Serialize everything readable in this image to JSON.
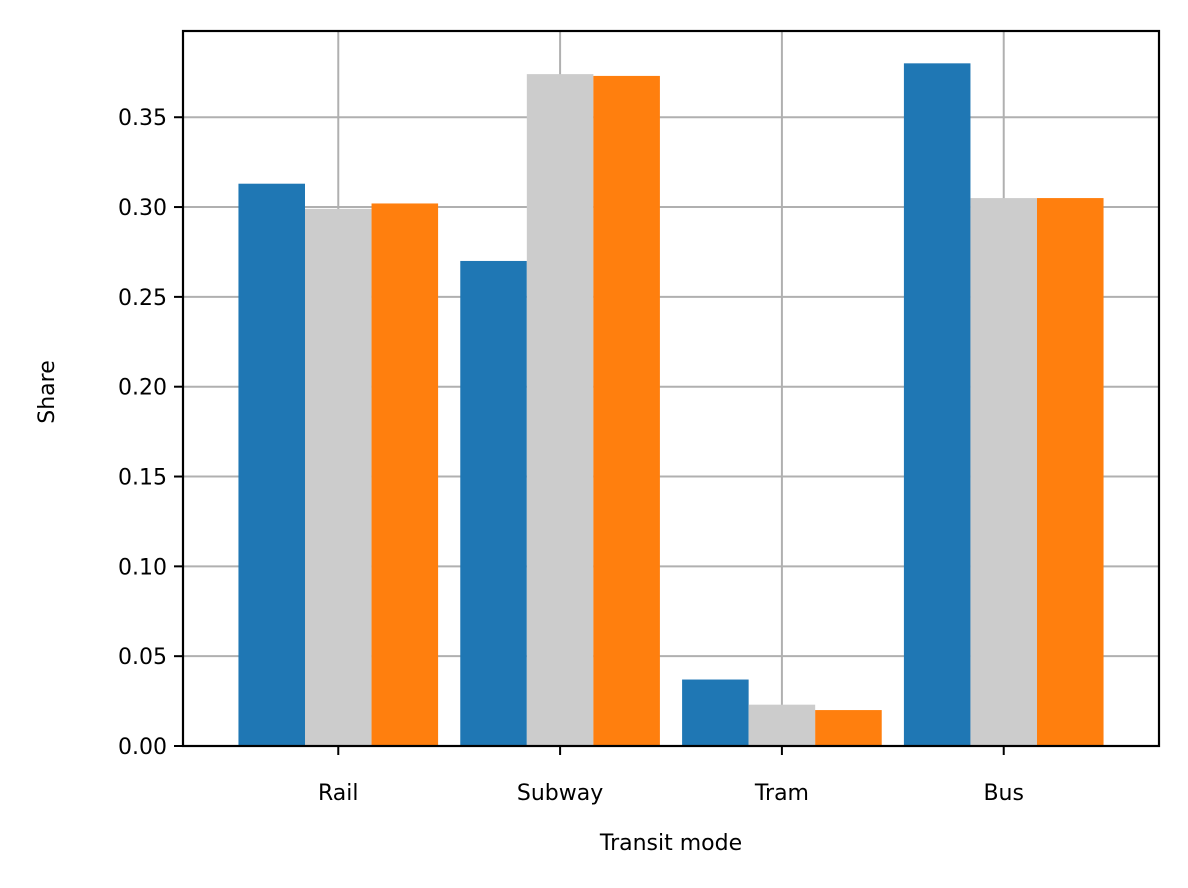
{
  "chart_data": {
    "type": "bar",
    "title": "",
    "xlabel": "Transit mode",
    "ylabel": "Share",
    "categories": [
      "Rail",
      "Subway",
      "Tram",
      "Bus"
    ],
    "series": [
      {
        "color": "#1f77b4",
        "values": [
          0.313,
          0.27,
          0.037,
          0.38
        ]
      },
      {
        "color": "#cccccc",
        "values": [
          0.299,
          0.374,
          0.023,
          0.305
        ]
      },
      {
        "color": "#ff7f0e",
        "values": [
          0.302,
          0.373,
          0.02,
          0.305
        ]
      }
    ],
    "ylim": [
      0,
      0.398
    ],
    "yticks": [
      0.0,
      0.05,
      0.1,
      0.15,
      0.2,
      0.25,
      0.3,
      0.35
    ],
    "ytick_labels": [
      "0.00",
      "0.05",
      "0.10",
      "0.15",
      "0.20",
      "0.25",
      "0.30",
      "0.35"
    ],
    "grid": true,
    "legend": "none"
  }
}
